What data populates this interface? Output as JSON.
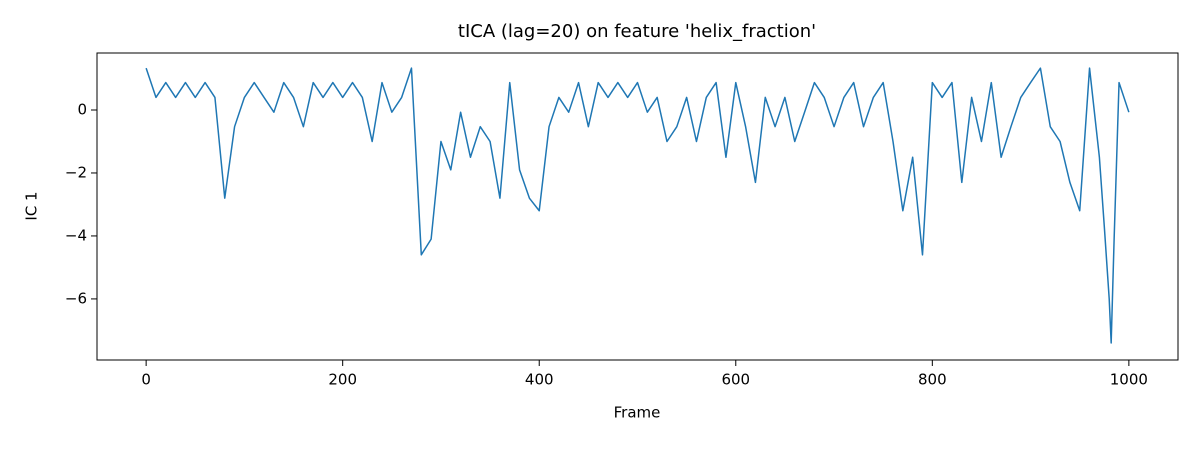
{
  "chart_data": {
    "type": "line",
    "title": "tICA (lag=20) on feature 'helix_fraction'",
    "xlabel": "Frame",
    "ylabel": "IC 1",
    "x": [
      0,
      10,
      20,
      30,
      40,
      50,
      60,
      70,
      80,
      90,
      100,
      110,
      120,
      130,
      140,
      150,
      160,
      170,
      180,
      190,
      200,
      210,
      220,
      230,
      240,
      250,
      260,
      270,
      280,
      290,
      300,
      310,
      320,
      330,
      340,
      350,
      360,
      370,
      380,
      390,
      400,
      410,
      420,
      430,
      440,
      450,
      460,
      470,
      480,
      490,
      500,
      510,
      520,
      530,
      540,
      550,
      560,
      570,
      580,
      590,
      600,
      610,
      620,
      630,
      640,
      650,
      660,
      670,
      680,
      690,
      700,
      710,
      720,
      730,
      740,
      750,
      760,
      770,
      780,
      790,
      800,
      810,
      820,
      830,
      840,
      850,
      860,
      870,
      880,
      890,
      900,
      910,
      920,
      930,
      940,
      950,
      960,
      970,
      975,
      980,
      982,
      985,
      990,
      1000
    ],
    "series": [
      {
        "name": "IC 1",
        "color": "#1f77b4",
        "values": [
          1.33,
          0.4,
          0.87,
          0.4,
          0.87,
          0.4,
          0.87,
          0.4,
          -2.8,
          -0.53,
          0.4,
          0.87,
          0.4,
          -0.07,
          0.87,
          0.4,
          -0.53,
          0.87,
          0.4,
          0.87,
          0.4,
          0.87,
          0.4,
          -1.0,
          0.87,
          -0.07,
          0.4,
          1.33,
          -4.6,
          -4.1,
          -1.0,
          -1.9,
          -0.07,
          -1.5,
          -0.53,
          -1.0,
          -2.8,
          0.87,
          -1.9,
          -2.8,
          -3.2,
          -0.53,
          0.4,
          -0.07,
          0.87,
          -0.53,
          0.87,
          0.4,
          0.87,
          0.4,
          0.87,
          -0.07,
          0.4,
          -1.0,
          -0.53,
          0.4,
          -1.0,
          0.4,
          0.87,
          -1.5,
          0.87,
          -0.53,
          -2.3,
          0.4,
          -0.53,
          0.4,
          -1.0,
          -0.07,
          0.87,
          0.4,
          -0.53,
          0.4,
          0.87,
          -0.53,
          0.4,
          0.87,
          -1.0,
          -3.2,
          -1.5,
          -4.6,
          0.87,
          0.4,
          0.87,
          -2.3,
          0.4,
          -1.0,
          0.87,
          -1.5,
          -0.53,
          0.4,
          0.87,
          1.33,
          -0.53,
          -1.0,
          -2.3,
          -3.2,
          1.33,
          -1.5,
          -3.7,
          -6.0,
          -7.4,
          -4.1,
          0.87,
          -0.07
        ]
      }
    ],
    "xlim": [
      -50,
      1050
    ],
    "xticks": [
      0,
      200,
      400,
      600,
      800,
      1000
    ],
    "ylim": [
      -7.94,
      1.81
    ],
    "yticks": [
      {
        "value": -6,
        "label": "−6"
      },
      {
        "value": -4,
        "label": "−4"
      },
      {
        "value": -2,
        "label": "−2"
      },
      0
    ],
    "grid": false
  }
}
